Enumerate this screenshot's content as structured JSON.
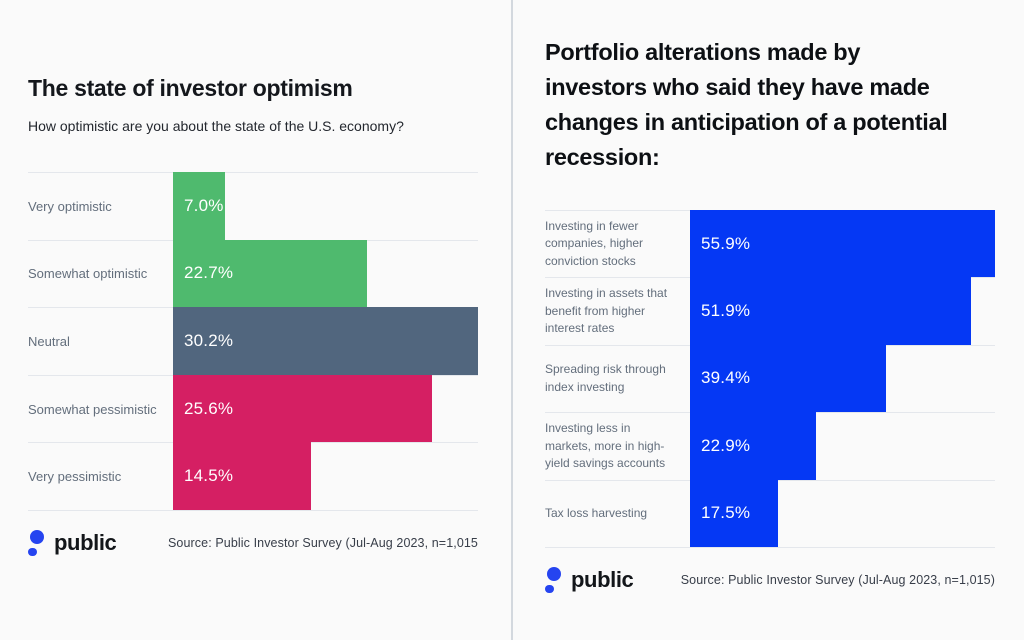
{
  "page": {
    "background": "#fafafa",
    "panel_divider_color": "#d3d8de",
    "row_divider_color": "#e4e7ec"
  },
  "brand": {
    "logo_text": "public",
    "logo_color": "#2544f0"
  },
  "chart_data": [
    {
      "type": "bar",
      "orientation": "horizontal",
      "title": "The state of investor optimism",
      "subtitle": "How optimistic are you about the state of the U.S. economy?",
      "categories": [
        "Very optimistic",
        "Somewhat optimistic",
        "Neutral",
        "Somewhat pessimistic",
        "Very pessimistic"
      ],
      "label_lines": [
        [
          "Very optimistic"
        ],
        [
          "Somewhat optimistic"
        ],
        [
          "Neutral"
        ],
        [
          "Somewhat pessimistic"
        ],
        [
          "Very pessimistic"
        ]
      ],
      "values": [
        7.0,
        22.7,
        30.2,
        25.6,
        14.5
      ],
      "value_labels": [
        "7.0%",
        "22.7%",
        "30.2%",
        "25.6%",
        "14.5%"
      ],
      "unit": "%",
      "bar_colors": [
        "#4fba6e",
        "#4fba6e",
        "#51667e",
        "#d51f63",
        "#d51f63"
      ],
      "bar_width_pct": [
        17.0,
        63.5,
        100,
        84.9,
        45.2
      ],
      "xmax": 30.2,
      "grid": false,
      "legend": false,
      "source": "Source: Public Investor Survey (Jul-Aug 2023, n=1,015"
    },
    {
      "type": "bar",
      "orientation": "horizontal",
      "title": "Portfolio alterations made by investors who said they have made changes in anticipation of a potential recession:",
      "title_lines": [
        "Portfolio alterations made by",
        "investors who said they have made",
        "changes in anticipation of a potential",
        "recession:"
      ],
      "categories": [
        "Investing in fewer companies, higher conviction stocks",
        "Investing in assets that benefit from higher interest rates",
        "Spreading risk through index investing",
        "Investing less in markets, more in high-yield savings accounts",
        "Tax loss harvesting"
      ],
      "label_lines": [
        [
          "Investing in fewer",
          "companies, higher",
          "conviction stocks"
        ],
        [
          "Investing in assets that",
          "benefit from higher",
          "interest rates"
        ],
        [
          "Spreading risk through",
          "index investing"
        ],
        [
          "Investing less in",
          "markets, more in high-",
          "yield savings accounts"
        ],
        [
          "Tax loss harvesting"
        ]
      ],
      "values": [
        55.9,
        51.9,
        39.4,
        22.9,
        17.5
      ],
      "value_labels": [
        "55.9%",
        "51.9%",
        "39.4%",
        "22.9%",
        "17.5%"
      ],
      "unit": "%",
      "bar_colors": [
        "#0538f4",
        "#0538f4",
        "#0538f4",
        "#0538f4",
        "#0538f4"
      ],
      "bar_width_pct": [
        100,
        92.1,
        64.1,
        41.4,
        28.9
      ],
      "xmax": 55.9,
      "grid": false,
      "legend": false,
      "source": "Source: Public Investor Survey (Jul-Aug 2023, n=1,015)"
    }
  ]
}
